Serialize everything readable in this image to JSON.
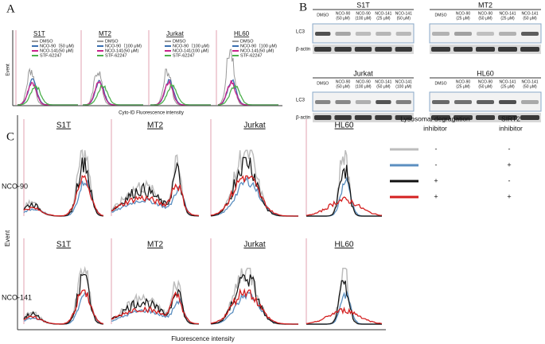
{
  "panels": {
    "A": {
      "label": "A",
      "y_label": "Event",
      "x_label": "Cyto-ID Fluorescence intensity",
      "legend_colors": [
        "#999999",
        "#3a6fb0",
        "#c8238a",
        "#4bb04b"
      ],
      "plots": [
        {
          "title": "S1T",
          "legend": [
            "DMSO",
            "NCO-90（50 μM)",
            "NCO-141(50 μM)",
            "STF-62247"
          ]
        },
        {
          "title": "MT2",
          "legend": [
            "DMSO",
            "NCO-90（100 μM)",
            "NCO-141(50 μM)",
            "STF-62247"
          ]
        },
        {
          "title": "Jurkat",
          "legend": [
            "DMSO",
            "NCO-90（100 μM)",
            "NCO-141(100 μM)",
            "STF-62247"
          ]
        },
        {
          "title": "HL60",
          "legend": [
            "DMSO",
            "NCO-90（100 μM)",
            "NCO-141(50 μM)",
            "STF-62247"
          ]
        }
      ]
    },
    "B": {
      "label": "B",
      "rows": [
        "LC3",
        "β-actin"
      ],
      "blots": [
        {
          "title": "S1T",
          "lanes": [
            [
              "DMSO"
            ],
            [
              "NCO-90",
              "(50 μM)"
            ],
            [
              "NCO-90",
              "(100 μM)"
            ],
            [
              "NCO-141",
              "(25 μM)"
            ],
            [
              "NCO-141",
              "(50 μM)"
            ]
          ]
        },
        {
          "title": "MT2",
          "lanes": [
            [
              "DMSO"
            ],
            [
              "NCO-90",
              "(25 μM)"
            ],
            [
              "NCO-90",
              "(50 μM)"
            ],
            [
              "NCO-141",
              "(25 μM)"
            ],
            [
              "NCO-141",
              "(50 μM)"
            ]
          ]
        },
        {
          "title": "Jurkat",
          "lanes": [
            [
              "DMSO"
            ],
            [
              "NCO-90",
              "(50 μM)"
            ],
            [
              "NCO-90",
              "(100 μM)"
            ],
            [
              "NCO-141",
              "(50 μM)"
            ],
            [
              "NCO-141",
              "(100 μM)"
            ]
          ]
        },
        {
          "title": "HL60",
          "lanes": [
            [
              "DMSO"
            ],
            [
              "NCO-90",
              "(25 μM)"
            ],
            [
              "NCO-90",
              "(50 μM)"
            ],
            [
              "NCO-141",
              "(25 μM)"
            ],
            [
              "NCO-141",
              "(50 μM)"
            ]
          ]
        }
      ]
    },
    "C": {
      "label": "C",
      "y_label": "Event",
      "x_label": "Fluorescence intensity",
      "rows": [
        {
          "name": "NCO-90",
          "titles": [
            "S1T",
            "MT2",
            "Jurkat",
            "HL60"
          ]
        },
        {
          "name": "NCO-141",
          "titles": [
            "S1T",
            "MT2",
            "Jurkat",
            "HL60"
          ]
        }
      ],
      "legend": {
        "headers": [
          [
            "Lysosomal degragation",
            "inhibitor"
          ],
          [
            "SIRT2",
            "inhibitor"
          ]
        ],
        "rows": [
          {
            "color": "#bdbdbd",
            "values": [
              "-",
              "-"
            ]
          },
          {
            "color": "#5b8fc0",
            "values": [
              "-",
              "+"
            ]
          },
          {
            "color": "#111111",
            "values": [
              "+",
              "-"
            ]
          },
          {
            "color": "#d42020",
            "values": [
              "+",
              "+"
            ]
          }
        ]
      }
    }
  }
}
